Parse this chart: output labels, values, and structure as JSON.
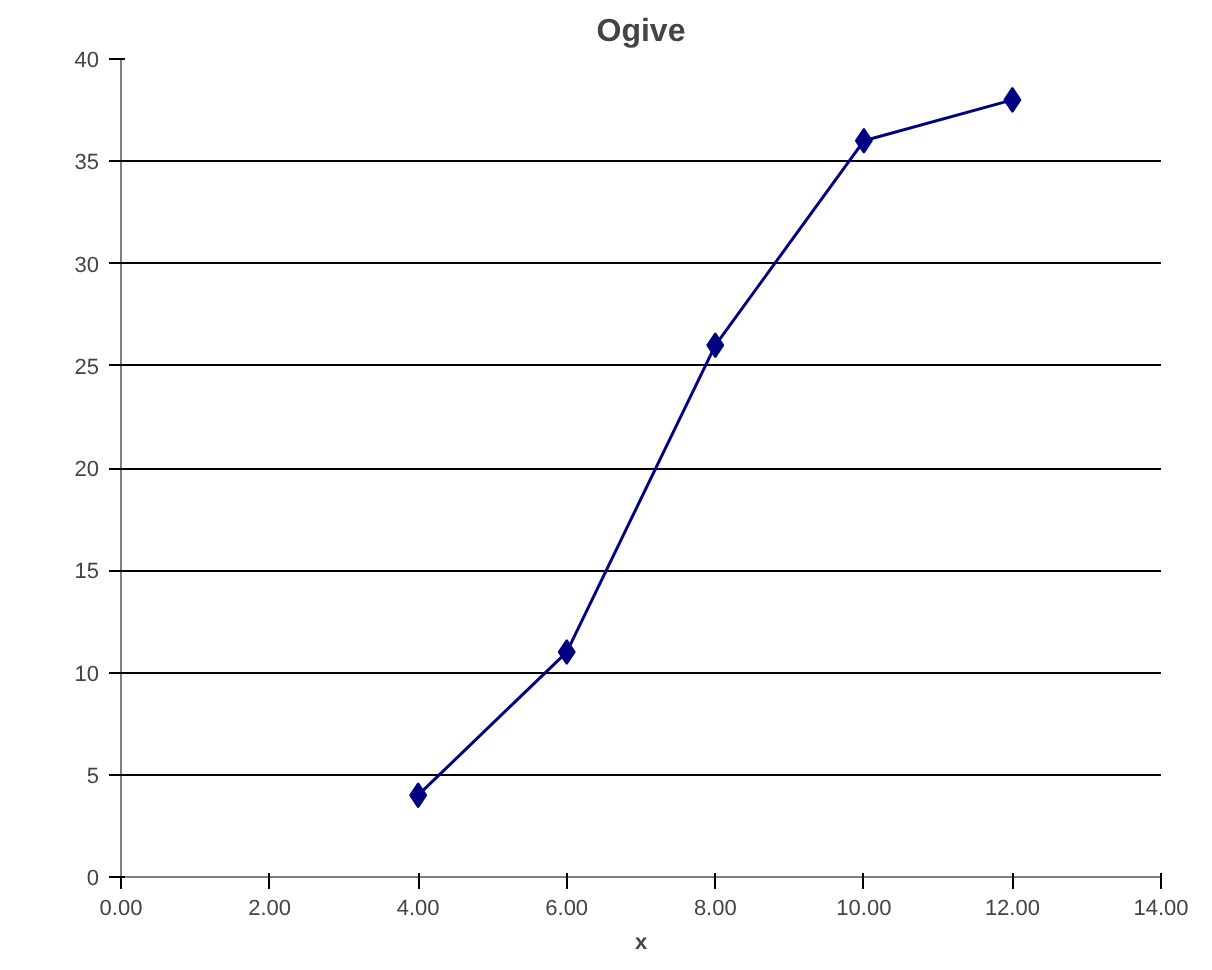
{
  "chart_data": {
    "type": "line",
    "title": "Ogive",
    "xlabel": "x",
    "x": [
      4,
      6,
      8,
      10,
      12
    ],
    "series": [
      {
        "color": "#000080",
        "values": [
          4,
          11,
          26,
          36,
          38
        ]
      }
    ],
    "xlim": [
      0,
      14
    ],
    "xticks": [
      {
        "value": 0,
        "label": "0.00"
      },
      {
        "value": 2,
        "label": "2.00"
      },
      {
        "value": 4,
        "label": "4.00"
      },
      {
        "value": 6,
        "label": "6.00"
      },
      {
        "value": 8,
        "label": "8.00"
      },
      {
        "value": 10,
        "label": "10.00"
      },
      {
        "value": 12,
        "label": "12.00"
      },
      {
        "value": 14,
        "label": "14.00"
      }
    ],
    "ylim": [
      0,
      40
    ],
    "yticks": [
      0,
      5,
      10,
      15,
      20,
      25,
      30,
      35,
      40
    ],
    "grid": "y",
    "marker": "diamond",
    "line_style": "solid"
  }
}
